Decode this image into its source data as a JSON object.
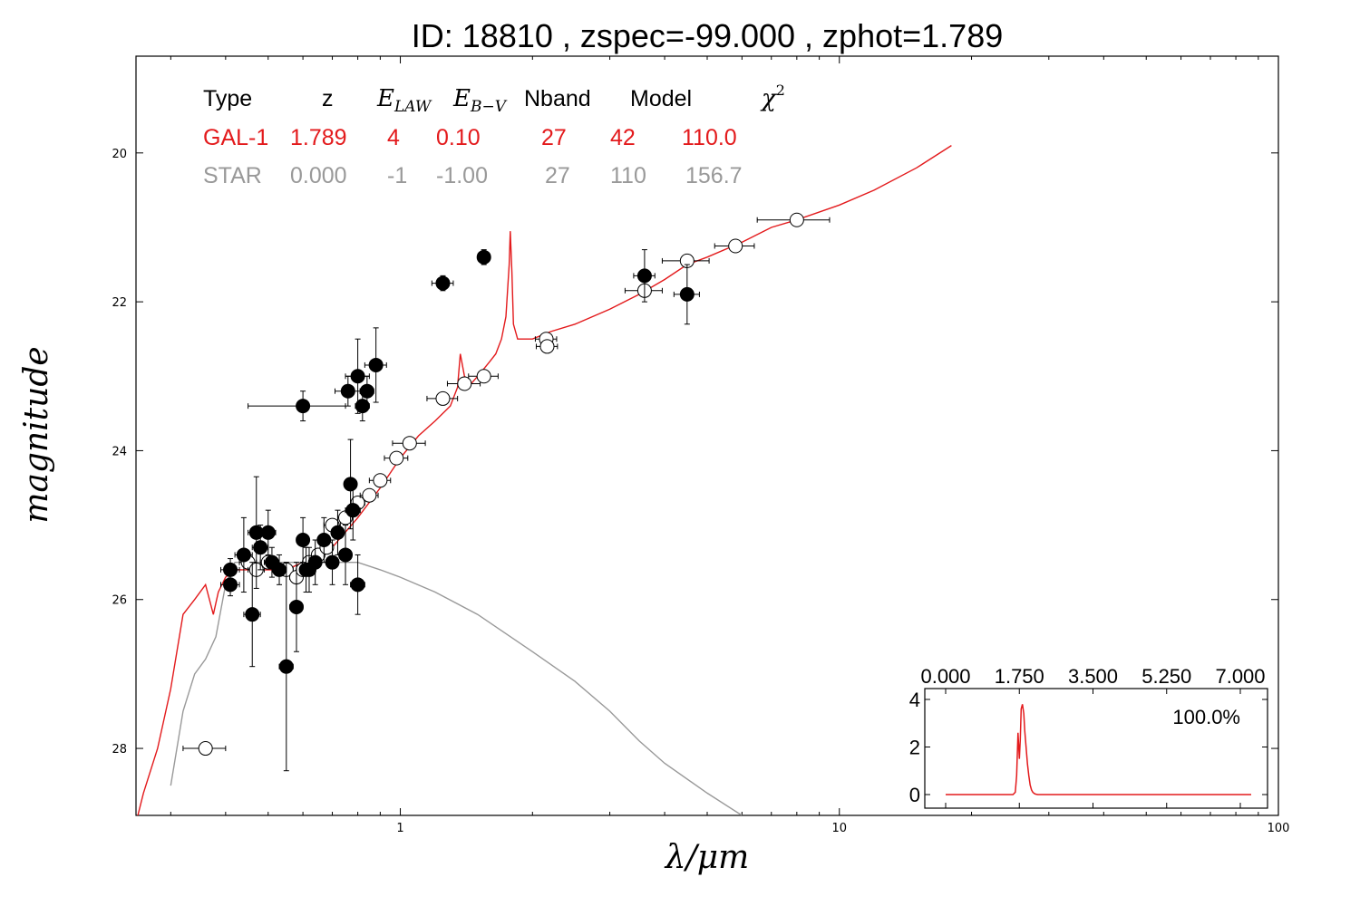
{
  "chart_data": [
    {
      "type": "scatter",
      "title": "ID:  18810 , zspec=-99.000 , zphot=1.789",
      "xlabel": "λ/μm",
      "ylabel": "magnitude",
      "xscale": "log",
      "xlim": [
        0.25,
        100
      ],
      "ylim": [
        28.9,
        18.7
      ],
      "x_tick_labels": [
        "1",
        "10",
        "100"
      ],
      "y_tick_labels": [
        "20",
        "22",
        "24",
        "26",
        "28"
      ],
      "colors": {
        "galaxy": "#e31a1c",
        "star": "#999999",
        "filled_points": "#000000"
      },
      "fit_table": {
        "headers": [
          "Type",
          "z",
          "E_LAW",
          "E_B−V",
          "Nband",
          "Model",
          "χ²"
        ],
        "rows": [
          {
            "label": "GAL-1",
            "values": [
              "1.789",
              "4",
              "0.10",
              "27",
              "42",
              "110.0"
            ],
            "color": "#e31a1c"
          },
          {
            "label": "STAR",
            "values": [
              "0.000",
              "-1",
              "-1.00",
              "27",
              "110",
              "156.7"
            ],
            "color": "#999999"
          }
        ]
      },
      "series": [
        {
          "role": "galaxy model",
          "style": "line",
          "x": [
            0.23,
            0.24,
            0.25,
            0.26,
            0.28,
            0.3,
            0.32,
            0.34,
            0.36,
            0.375,
            0.385,
            0.4,
            0.42,
            0.45,
            0.5,
            0.55,
            0.6,
            0.7,
            0.8,
            0.9,
            1.0,
            1.1,
            1.2,
            1.3,
            1.35,
            1.37,
            1.4,
            1.45,
            1.5,
            1.55,
            1.6,
            1.65,
            1.7,
            1.74,
            1.77,
            1.78,
            1.795,
            1.81,
            1.85,
            1.9,
            2.0,
            2.2,
            2.5,
            3.0,
            3.5,
            4.0,
            4.5,
            5.0,
            6.0,
            7.0,
            8.0,
            10.0,
            12.0,
            15.0,
            18.0
          ],
          "y": [
            28.7,
            28.7,
            29.0,
            28.6,
            28.0,
            27.2,
            26.2,
            26.0,
            25.8,
            26.2,
            25.9,
            25.7,
            25.6,
            25.6,
            25.6,
            25.6,
            25.5,
            25.3,
            24.9,
            24.5,
            24.1,
            23.8,
            23.6,
            23.4,
            23.15,
            22.7,
            23.0,
            23.1,
            23.0,
            22.9,
            22.8,
            22.7,
            22.5,
            22.2,
            21.5,
            21.05,
            21.6,
            22.3,
            22.5,
            22.5,
            22.5,
            22.4,
            22.3,
            22.1,
            21.9,
            21.7,
            21.5,
            21.4,
            21.2,
            21.0,
            20.9,
            20.7,
            20.5,
            20.2,
            19.9
          ]
        },
        {
          "role": "star model",
          "style": "line",
          "x": [
            0.3,
            0.32,
            0.34,
            0.36,
            0.38,
            0.4,
            0.42,
            0.45,
            0.5,
            0.6,
            0.7,
            0.8,
            0.9,
            1.0,
            1.2,
            1.5,
            2.0,
            2.5,
            3.0,
            3.5,
            4.0,
            5.0,
            6.0
          ],
          "y": [
            28.5,
            27.5,
            27.0,
            26.8,
            26.5,
            25.8,
            25.5,
            25.5,
            25.5,
            25.5,
            25.5,
            25.5,
            25.6,
            25.7,
            25.9,
            26.2,
            26.7,
            27.1,
            27.5,
            27.9,
            28.2,
            28.6,
            28.9
          ]
        },
        {
          "role": "open points (fitted bands)",
          "style": "open",
          "x": [
            0.36,
            0.45,
            0.47,
            0.5,
            0.55,
            0.58,
            0.6,
            0.62,
            0.65,
            0.68,
            0.7,
            0.75,
            0.78,
            0.8,
            0.85,
            0.9,
            0.98,
            1.05,
            1.25,
            1.4,
            1.55,
            2.15,
            2.16,
            3.6,
            4.5,
            5.8,
            8.0
          ],
          "y": [
            28.0,
            25.5,
            25.6,
            25.5,
            25.6,
            25.7,
            25.6,
            25.5,
            25.4,
            25.3,
            25.0,
            24.9,
            24.8,
            24.7,
            24.6,
            24.4,
            24.1,
            23.9,
            23.3,
            23.1,
            23.0,
            22.5,
            22.6,
            21.85,
            21.45,
            21.25,
            20.9
          ],
          "xerr": [
            0.04,
            0.02,
            0.02,
            0.02,
            0.02,
            0.02,
            0.02,
            0.02,
            0.02,
            0.02,
            0.03,
            0.03,
            0.03,
            0.03,
            0.04,
            0.05,
            0.06,
            0.09,
            0.1,
            0.12,
            0.12,
            0.12,
            0.12,
            0.35,
            0.55,
            0.6,
            1.5
          ],
          "yerr": [
            0.05,
            0.05,
            0.05,
            0.05,
            0.05,
            0.05,
            0.05,
            0.05,
            0.05,
            0.05,
            0.05,
            0.05,
            0.05,
            0.05,
            0.05,
            0.05,
            0.05,
            0.05,
            0.05,
            0.05,
            0.05,
            0.05,
            0.05,
            0.05,
            0.05,
            0.05,
            0.05
          ]
        },
        {
          "role": "filled points (other bands)",
          "style": "filled",
          "x": [
            0.41,
            0.41,
            0.44,
            0.46,
            0.47,
            0.48,
            0.5,
            0.51,
            0.53,
            0.55,
            0.58,
            0.6,
            0.61,
            0.62,
            0.64,
            0.67,
            0.7,
            0.72,
            0.75,
            0.77,
            0.78,
            0.8,
            0.82,
            0.84,
            0.6,
            0.76,
            0.8,
            0.88,
            1.25,
            1.55,
            3.6,
            4.5
          ],
          "y": [
            25.6,
            25.8,
            25.4,
            26.2,
            25.1,
            25.3,
            25.1,
            25.5,
            25.6,
            26.9,
            26.1,
            25.2,
            25.6,
            25.6,
            25.5,
            25.2,
            25.5,
            25.1,
            25.4,
            24.45,
            24.8,
            25.8,
            23.4,
            23.2,
            23.4,
            23.2,
            23.0,
            22.85,
            21.75,
            21.4,
            21.65,
            21.9
          ],
          "xerr": [
            0.02,
            0.02,
            0.02,
            0.02,
            0.02,
            0.02,
            0.02,
            0.02,
            0.02,
            0.02,
            0.02,
            0.02,
            0.02,
            0.02,
            0.02,
            0.02,
            0.02,
            0.02,
            0.02,
            0.02,
            0.03,
            0.03,
            0.03,
            0.03,
            0.15,
            0.05,
            0.05,
            0.05,
            0.07,
            0.04,
            0.2,
            0.3
          ],
          "yerr": [
            0.15,
            0.15,
            0.5,
            0.7,
            0.75,
            0.3,
            0.3,
            0.2,
            0.2,
            1.4,
            0.6,
            0.3,
            0.3,
            0.3,
            0.3,
            0.3,
            0.3,
            0.3,
            0.4,
            0.6,
            0.4,
            0.4,
            0.2,
            0.2,
            0.2,
            0.2,
            0.5,
            0.5,
            0.1,
            0.1,
            0.35,
            0.4
          ]
        }
      ]
    },
    {
      "type": "line",
      "role": "inset redshift probability distribution",
      "x_tick_labels": [
        "0.000",
        "1.750",
        "3.500",
        "5.250",
        "7.000"
      ],
      "y_tick_labels": [
        "0",
        "2",
        "4"
      ],
      "xlim": [
        -0.2,
        7.0
      ],
      "ylim": [
        -0.3,
        4.4
      ],
      "annotation": "100.0%",
      "color": "#e31a1c",
      "x": [
        0.0,
        1.5,
        1.55,
        1.58,
        1.61,
        1.64,
        1.66,
        1.68,
        1.71,
        1.74,
        1.76,
        1.79,
        1.82,
        1.85,
        1.88,
        1.91,
        1.94,
        1.97,
        2.0,
        2.05,
        2.1,
        2.2,
        6.8
      ],
      "y": [
        0.0,
        0.0,
        0.1,
        0.8,
        2.6,
        1.5,
        2.3,
        3.6,
        3.8,
        3.4,
        2.7,
        2.0,
        1.3,
        0.8,
        0.4,
        0.2,
        0.1,
        0.05,
        0.02,
        0.0,
        0.0,
        0.0,
        0.0
      ]
    }
  ]
}
